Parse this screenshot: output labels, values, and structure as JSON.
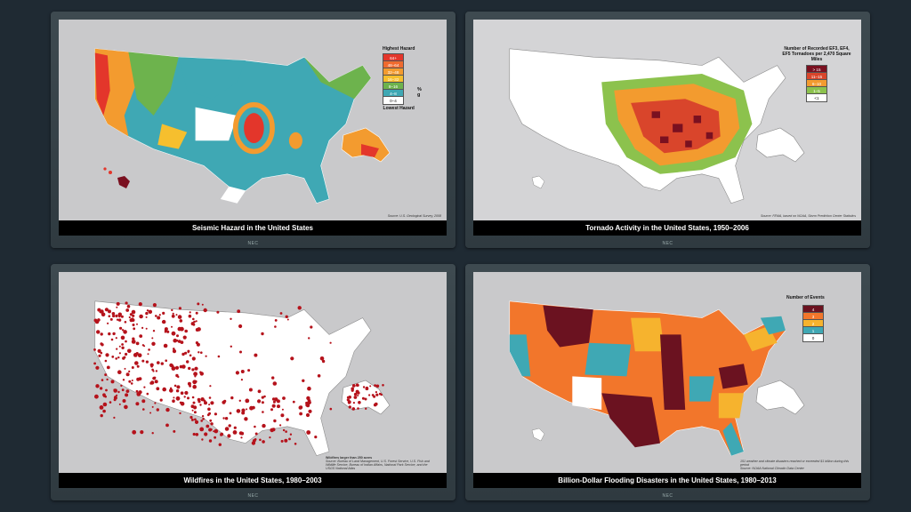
{
  "brand": "NEC",
  "panels": {
    "seismic": {
      "caption": "Seismic Hazard in the United States",
      "source": "Source: U.S. Geological Survey, 2008",
      "legend_top": "Highest Hazard",
      "legend_bottom": "Lowest Hazard",
      "legend_unit": "% g",
      "legend": [
        {
          "label": "64+",
          "color": "#e3362b"
        },
        {
          "label": "48–64",
          "color": "#ef6a2f"
        },
        {
          "label": "32–48",
          "color": "#f39b2f"
        },
        {
          "label": "16–32",
          "color": "#f6bf2e"
        },
        {
          "label": "8–16",
          "color": "#6db34d"
        },
        {
          "label": "4–8",
          "color": "#3fa8b4"
        },
        {
          "label": "0–4",
          "color": "#ffffff"
        }
      ]
    },
    "tornado": {
      "caption": "Tornado Activity in the United States, 1950–2006",
      "source": "Source: FEMA, based on NOAA, Storm Prediction Center Statistics",
      "legend_title": "Number of Recorded EF3, EF4, EF5 Tornadoes per 2,470 Square Miles",
      "legend": [
        {
          "label": "> 15",
          "color": "#7a1020"
        },
        {
          "label": "11–15",
          "color": "#d9452b"
        },
        {
          "label": "6–10",
          "color": "#f39b2f"
        },
        {
          "label": "1–5",
          "color": "#8cc24d"
        },
        {
          "label": "<1",
          "color": "#ffffff"
        }
      ]
    },
    "wildfire": {
      "caption": "Wildfires in the United States, 1980–2003",
      "source_title": "Wildfires larger than 250 acres",
      "source": "Source: Bureau of Land Management, U.S. Forest Service, U.S. Fish and Wildlife Service, Bureau of Indian Affairs, National Park Service, and the USGS National Atlas"
    },
    "flood": {
      "caption": "Billion-Dollar Flooding Disasters in the United States, 1980–2013",
      "legend_title": "Number of Events",
      "note": "151 weather and climate disasters reached or exceeded $1 billion during this period",
      "source": "Source: NOAA National Climatic Data Center",
      "legend": [
        {
          "label": "4",
          "color": "#6b1220"
        },
        {
          "label": "3",
          "color": "#f2762b"
        },
        {
          "label": "2",
          "color": "#f6b32e"
        },
        {
          "label": "1",
          "color": "#3fa8b4"
        },
        {
          "label": "0",
          "color": "#ffffff"
        }
      ]
    }
  }
}
